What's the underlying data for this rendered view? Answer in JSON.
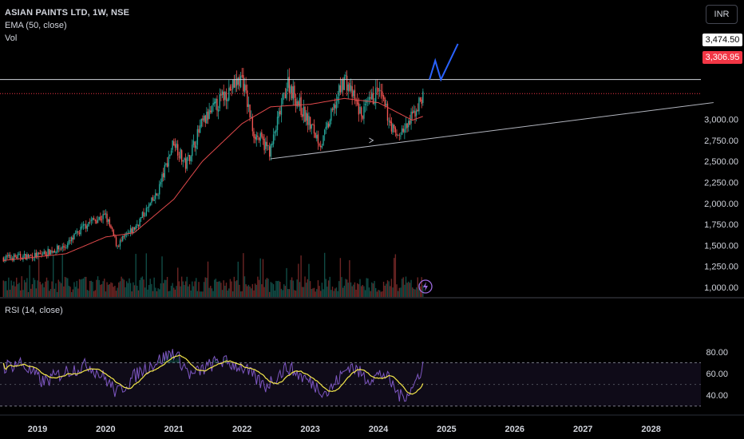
{
  "header": {
    "title": "ASIAN PAINTS LTD, 1W, NSE",
    "ema_label": "EMA (50, close)",
    "vol_label": "Vol",
    "rsi_label": "RSI (14, close)"
  },
  "currency_button": "INR",
  "price_tags": {
    "resistance": "3,474.50",
    "current": "3,306.95"
  },
  "price_axis": [
    "3,000.00",
    "2,750.00",
    "2,500.00",
    "2,250.00",
    "2,000.00",
    "1,750.00",
    "1,500.00",
    "1,250.00",
    "1,000.00"
  ],
  "rsi_axis": [
    "80.00",
    "60.00",
    "40.00"
  ],
  "time_axis": [
    "2019",
    "2020",
    "2021",
    "2022",
    "2023",
    "2024",
    "2025",
    "2026",
    "2027",
    "2028"
  ],
  "icons": {
    "flash": "lightning-icon",
    "arrow": "chevron-right-icon"
  },
  "colors": {
    "up": "#26a69a",
    "down": "#ef5350",
    "ema": "#e0494b",
    "rsi": "#7e57c2",
    "rsi_ma": "#f5e84b",
    "projection": "#2962ff",
    "trendline": "#b2b5be",
    "current": "#f23645"
  },
  "chart_data": {
    "type": "candlestick",
    "symbol": "ASIAN PAINTS LTD",
    "interval": "1W",
    "exchange": "NSE",
    "price_key_points": [
      [
        "2018-07",
        1350
      ],
      [
        "2019-01",
        1380
      ],
      [
        "2019-06",
        1490
      ],
      [
        "2019-10",
        1780
      ],
      [
        "2020-01",
        1850
      ],
      [
        "2020-03",
        1500
      ],
      [
        "2020-06",
        1700
      ],
      [
        "2020-10",
        2100
      ],
      [
        "2021-01",
        2750
      ],
      [
        "2021-03",
        2450
      ],
      [
        "2021-06",
        2950
      ],
      [
        "2021-10",
        3300
      ],
      [
        "2022-01",
        3500
      ],
      [
        "2022-03",
        2850
      ],
      [
        "2022-06",
        2620
      ],
      [
        "2022-09",
        3450
      ],
      [
        "2022-12",
        3050
      ],
      [
        "2023-03",
        2700
      ],
      [
        "2023-07",
        3500
      ],
      [
        "2023-10",
        3050
      ],
      [
        "2024-01",
        3350
      ],
      [
        "2024-04",
        2800
      ],
      [
        "2024-06",
        2900
      ],
      [
        "2024-09",
        3306.95
      ]
    ],
    "ema_key_points": [
      [
        "2018-07",
        1320
      ],
      [
        "2019-06",
        1400
      ],
      [
        "2020-01",
        1600
      ],
      [
        "2020-06",
        1650
      ],
      [
        "2021-01",
        2050
      ],
      [
        "2021-06",
        2500
      ],
      [
        "2022-01",
        2950
      ],
      [
        "2022-06",
        3150
      ],
      [
        "2023-01",
        3180
      ],
      [
        "2023-07",
        3250
      ],
      [
        "2024-01",
        3200
      ],
      [
        "2024-07",
        2990
      ],
      [
        "2024-09",
        3040
      ]
    ],
    "rsi_key_points": [
      [
        "2018-07",
        66
      ],
      [
        "2018-10",
        70
      ],
      [
        "2019-02",
        52
      ],
      [
        "2019-06",
        62
      ],
      [
        "2019-10",
        68
      ],
      [
        "2020-01",
        55
      ],
      [
        "2020-03",
        42
      ],
      [
        "2020-07",
        62
      ],
      [
        "2021-01",
        80
      ],
      [
        "2021-04",
        58
      ],
      [
        "2021-09",
        72
      ],
      [
        "2022-01",
        66
      ],
      [
        "2022-05",
        48
      ],
      [
        "2022-09",
        66
      ],
      [
        "2023-01",
        52
      ],
      [
        "2023-04",
        42
      ],
      [
        "2023-08",
        68
      ],
      [
        "2023-11",
        55
      ],
      [
        "2024-02",
        60
      ],
      [
        "2024-05",
        38
      ],
      [
        "2024-07",
        46
      ],
      [
        "2024-09",
        70
      ]
    ],
    "resistance_level": 3474.5,
    "current_price": 3306.95,
    "trendline": {
      "start": [
        "2022-06",
        2530
      ],
      "end": [
        "2028-12",
        3200
      ]
    },
    "projection": [
      [
        "2024-10",
        3474.5
      ],
      [
        "2024-11",
        3700
      ],
      [
        "2024-12",
        3474.5
      ],
      [
        "2025-03",
        3900
      ]
    ],
    "price_ticks": [
      1000,
      1250,
      1500,
      1750,
      2000,
      2250,
      2500,
      2750,
      3000
    ],
    "rsi_ticks": [
      40,
      60,
      80
    ],
    "rsi_bands": [
      30,
      70
    ],
    "years": [
      2019,
      2020,
      2021,
      2022,
      2023,
      2024,
      2025,
      2026,
      2027,
      2028
    ]
  }
}
